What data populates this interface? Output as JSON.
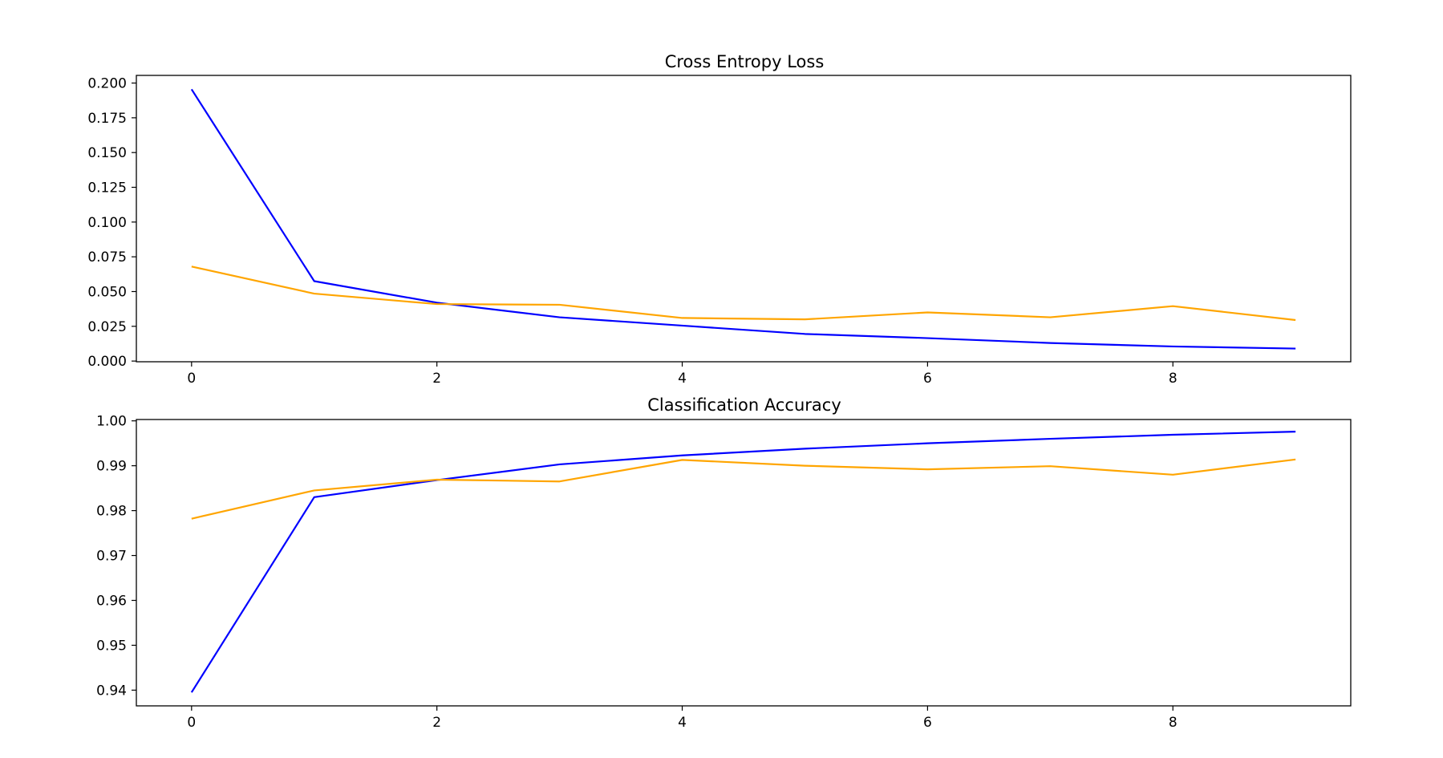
{
  "chart_data": [
    {
      "type": "line",
      "title": "Cross Entropy Loss",
      "xlabel": "",
      "ylabel": "",
      "x": [
        0,
        1,
        2,
        3,
        4,
        5,
        6,
        7,
        8,
        9
      ],
      "xticks": [
        0,
        2,
        4,
        6,
        8
      ],
      "xlim": [
        -0.45,
        9.45
      ],
      "yticks": [
        "0.000",
        "0.025",
        "0.050",
        "0.075",
        "0.100",
        "0.125",
        "0.150",
        "0.175",
        "0.200"
      ],
      "ylim": [
        -0.0005,
        0.2055
      ],
      "grid": false,
      "legend": false,
      "series": [
        {
          "color": "#0000ff",
          "values": [
            0.1955,
            0.0575,
            0.042,
            0.0315,
            0.0255,
            0.0195,
            0.0165,
            0.013,
            0.0105,
            0.009
          ]
        },
        {
          "color": "#ffa500",
          "values": [
            0.068,
            0.0485,
            0.041,
            0.0405,
            0.031,
            0.03,
            0.035,
            0.0315,
            0.0395,
            0.0295
          ]
        }
      ]
    },
    {
      "type": "line",
      "title": "Classification Accuracy",
      "xlabel": "",
      "ylabel": "",
      "x": [
        0,
        1,
        2,
        3,
        4,
        5,
        6,
        7,
        8,
        9
      ],
      "xticks": [
        0,
        2,
        4,
        6,
        8
      ],
      "xlim": [
        -0.45,
        9.45
      ],
      "yticks": [
        "0.94",
        "0.95",
        "0.96",
        "0.97",
        "0.98",
        "0.99",
        "1.00"
      ],
      "ylim": [
        0.9365,
        1.0003
      ],
      "grid": false,
      "legend": false,
      "series": [
        {
          "color": "#0000ff",
          "values": [
            0.9395,
            0.983,
            0.9868,
            0.9903,
            0.9923,
            0.9938,
            0.995,
            0.996,
            0.9969,
            0.9976
          ]
        },
        {
          "color": "#ffa500",
          "values": [
            0.9782,
            0.9845,
            0.9869,
            0.9865,
            0.9913,
            0.99,
            0.9892,
            0.9899,
            0.988,
            0.9914
          ]
        }
      ]
    }
  ]
}
